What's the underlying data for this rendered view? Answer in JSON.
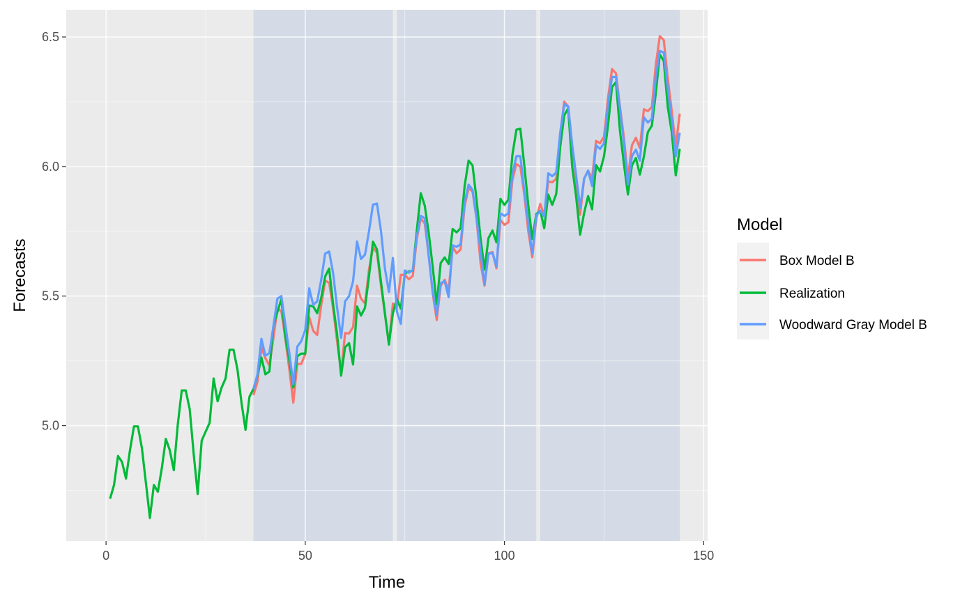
{
  "chart_data": {
    "type": "line",
    "title": "",
    "xlabel": "Time",
    "ylabel": "Forecasts",
    "xlim": [
      -10,
      151
    ],
    "ylim": [
      4.555,
      6.605
    ],
    "x_ticks": [
      0,
      50,
      100,
      150
    ],
    "x_tick_labels": [
      "0",
      "50",
      "100",
      "150"
    ],
    "y_ticks": [
      5.0,
      5.5,
      6.0,
      6.5
    ],
    "y_tick_labels": [
      "5.0",
      "5.5",
      "6.0",
      "6.5"
    ],
    "grid": true,
    "background": "#ebebeb",
    "shaded_regions": [
      {
        "x": [
          37,
          72
        ],
        "color": "#d4dbe6"
      },
      {
        "x": [
          73,
          108
        ],
        "color": "#d4dbe6"
      },
      {
        "x": [
          109,
          144
        ],
        "color": "#d4dbe6"
      }
    ],
    "legend": {
      "title": "Model",
      "position": "right",
      "entries": [
        {
          "label": "Box Model B",
          "color": "#f8766d"
        },
        {
          "label": "Realization",
          "color": "#00ba38"
        },
        {
          "label": "Woodward Gray Model B",
          "color": "#619cff"
        }
      ]
    },
    "series": [
      {
        "name": "Realization",
        "color": "#00ba38",
        "x_start": 1,
        "values": [
          4.718,
          4.771,
          4.883,
          4.86,
          4.796,
          4.905,
          4.997,
          4.997,
          4.913,
          4.779,
          4.644,
          4.771,
          4.745,
          4.836,
          4.949,
          4.905,
          4.828,
          5.004,
          5.136,
          5.136,
          5.063,
          4.89,
          4.736,
          4.942,
          4.977,
          5.011,
          5.182,
          5.094,
          5.147,
          5.182,
          5.293,
          5.293,
          5.215,
          5.088,
          4.984,
          5.112,
          5.142,
          5.193,
          5.263,
          5.198,
          5.209,
          5.384,
          5.438,
          5.489,
          5.342,
          5.252,
          5.147,
          5.268,
          5.278,
          5.278,
          5.464,
          5.46,
          5.434,
          5.493,
          5.576,
          5.606,
          5.468,
          5.352,
          5.193,
          5.303,
          5.318,
          5.236,
          5.46,
          5.425,
          5.455,
          5.576,
          5.71,
          5.68,
          5.557,
          5.434,
          5.313,
          5.434,
          5.489,
          5.451,
          5.587,
          5.595,
          5.598,
          5.753,
          5.897,
          5.849,
          5.743,
          5.613,
          5.468,
          5.628,
          5.649,
          5.624,
          5.759,
          5.746,
          5.762,
          5.924,
          6.023,
          6.004,
          5.872,
          5.724,
          5.602,
          5.724,
          5.753,
          5.707,
          5.875,
          5.852,
          5.872,
          6.045,
          6.142,
          6.146,
          6.002,
          5.849,
          5.72,
          5.817,
          5.829,
          5.762,
          5.892,
          5.852,
          5.894,
          6.075,
          6.197,
          6.225,
          6.001,
          5.883,
          5.737,
          5.82,
          5.886,
          5.835,
          6.006,
          5.981,
          6.04,
          6.157,
          6.306,
          6.326,
          6.138,
          6.009,
          5.892,
          6.004,
          6.033,
          5.969,
          6.038,
          6.133,
          6.157,
          6.282,
          6.433,
          6.407,
          6.23,
          6.133,
          5.966,
          6.068
        ]
      },
      {
        "name": "Box Model B",
        "color": "#f8766d",
        "x_start": 37,
        "values": [
          5.118,
          5.169,
          5.3,
          5.26,
          5.232,
          5.337,
          5.451,
          5.442,
          5.336,
          5.217,
          5.089,
          5.238,
          5.238,
          5.276,
          5.418,
          5.366,
          5.35,
          5.465,
          5.559,
          5.552,
          5.451,
          5.325,
          5.205,
          5.357,
          5.356,
          5.38,
          5.54,
          5.49,
          5.472,
          5.602,
          5.686,
          5.668,
          5.542,
          5.43,
          5.317,
          5.471,
          5.46,
          5.582,
          5.582,
          5.565,
          5.578,
          5.72,
          5.8,
          5.78,
          5.656,
          5.51,
          5.408,
          5.54,
          5.563,
          5.522,
          5.689,
          5.665,
          5.68,
          5.847,
          5.917,
          5.903,
          5.798,
          5.628,
          5.54,
          5.665,
          5.67,
          5.607,
          5.794,
          5.775,
          5.785,
          5.948,
          6.009,
          6.0,
          5.89,
          5.748,
          5.65,
          5.8,
          5.856,
          5.812,
          5.943,
          5.939,
          5.953,
          6.125,
          6.25,
          6.232,
          6.08,
          5.95,
          5.814,
          5.953,
          5.984,
          5.954,
          6.099,
          6.09,
          6.116,
          6.264,
          6.376,
          6.36,
          6.23,
          6.111,
          5.955,
          6.082,
          6.111,
          6.071,
          6.221,
          6.214,
          6.23,
          6.393,
          6.503,
          6.488,
          6.34,
          6.215,
          6.078,
          6.204
        ]
      },
      {
        "name": "Woodward Gray Model B",
        "color": "#619cff",
        "x_start": 37,
        "values": [
          5.14,
          5.198,
          5.335,
          5.27,
          5.28,
          5.383,
          5.49,
          5.5,
          5.39,
          5.28,
          5.16,
          5.305,
          5.326,
          5.369,
          5.53,
          5.466,
          5.48,
          5.562,
          5.664,
          5.672,
          5.588,
          5.455,
          5.339,
          5.48,
          5.5,
          5.557,
          5.711,
          5.643,
          5.66,
          5.75,
          5.853,
          5.857,
          5.752,
          5.606,
          5.516,
          5.647,
          5.44,
          5.393,
          5.599,
          5.59,
          5.6,
          5.73,
          5.81,
          5.8,
          5.653,
          5.517,
          5.428,
          5.55,
          5.558,
          5.496,
          5.696,
          5.69,
          5.7,
          5.86,
          5.93,
          5.91,
          5.8,
          5.674,
          5.545,
          5.663,
          5.667,
          5.614,
          5.819,
          5.81,
          5.819,
          5.97,
          6.04,
          6.04,
          5.904,
          5.775,
          5.663,
          5.81,
          5.83,
          5.807,
          5.974,
          5.963,
          5.977,
          6.13,
          6.24,
          6.232,
          6.085,
          5.965,
          5.84,
          5.953,
          5.984,
          5.925,
          6.082,
          6.068,
          6.09,
          6.237,
          6.346,
          6.345,
          6.226,
          6.09,
          5.93,
          6.04,
          6.065,
          6.023,
          6.19,
          6.17,
          6.184,
          6.346,
          6.446,
          6.44,
          6.3,
          6.18,
          6.04,
          6.13
        ]
      }
    ]
  }
}
